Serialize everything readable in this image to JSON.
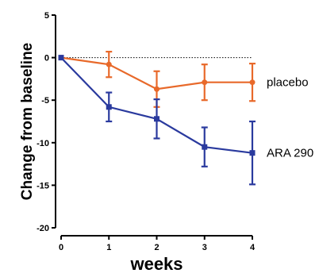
{
  "chart_data": {
    "type": "line",
    "title": "",
    "xlabel": "weeks",
    "ylabel": "Change from baseline",
    "x": [
      0,
      1,
      2,
      3,
      4
    ],
    "xlim": [
      0,
      4
    ],
    "ylim": [
      -20,
      5
    ],
    "xticks": [
      "0",
      "1",
      "2",
      "3",
      "4"
    ],
    "yticks": [
      "5",
      "0",
      "-5",
      "-10",
      "-15",
      "-20"
    ],
    "grid": false,
    "reference_line": {
      "y": 0,
      "style": "dotted"
    },
    "series": [
      {
        "name": "placebo",
        "color": "#E8692A",
        "marker": "circle",
        "values": [
          0,
          -0.8,
          -3.7,
          -2.9,
          -2.9
        ],
        "error": [
          0,
          1.5,
          2.1,
          2.1,
          2.2
        ]
      },
      {
        "name": "ARA 290",
        "color": "#2A3A9E",
        "marker": "square",
        "values": [
          0,
          -5.8,
          -7.2,
          -10.5,
          -11.2
        ],
        "error": [
          0,
          1.7,
          2.3,
          2.3,
          3.7
        ]
      }
    ],
    "legend": "inline-right"
  }
}
